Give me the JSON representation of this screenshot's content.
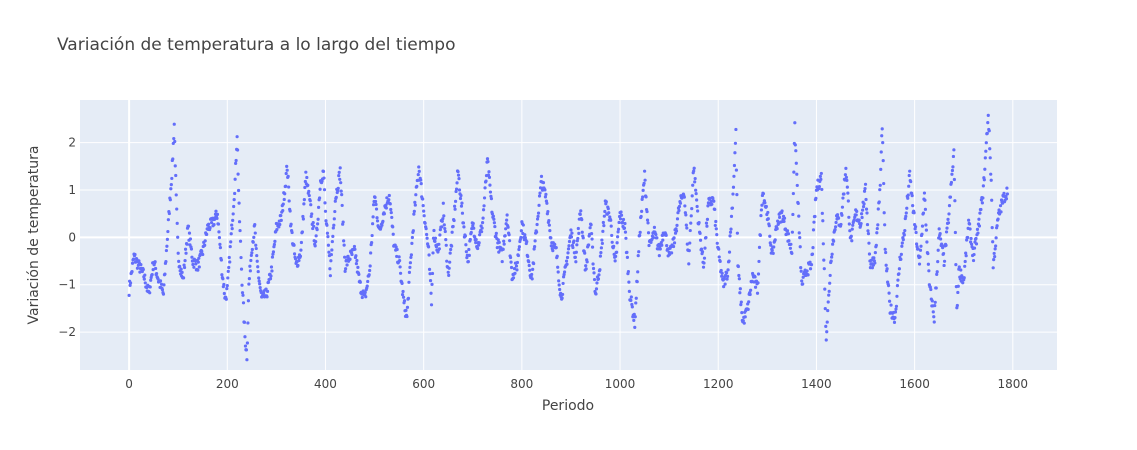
{
  "chart_data": {
    "type": "scatter",
    "title": "Variación de temperatura a lo largo del tiempo",
    "xlabel": "Periodo",
    "ylabel": "Variación de temperatura",
    "xlim": [
      -100,
      1890
    ],
    "ylim": [
      -2.8,
      2.9
    ],
    "x_ticks": [
      0,
      200,
      400,
      600,
      800,
      1000,
      1200,
      1400,
      1600,
      1800
    ],
    "y_ticks": [
      -2,
      -1,
      0,
      1,
      2
    ],
    "grid": true,
    "legend": "none",
    "marker_color": "#636efa",
    "plot_background": "#e5ecf6",
    "n_points": 1790,
    "series": [
      {
        "x": [
          0,
          10,
          20,
          30,
          40,
          50,
          60,
          70,
          80,
          88,
          92,
          96,
          100,
          110,
          120,
          130,
          140,
          150,
          160,
          170,
          180,
          190,
          196,
          200,
          210,
          216,
          220,
          224,
          230,
          236,
          240,
          244,
          250,
          256,
          260,
          270,
          280,
          290,
          300,
          310,
          318,
          322,
          330,
          340,
          350,
          360,
          370,
          380,
          390,
          396,
          400,
          410,
          420,
          430,
          440,
          450,
          460,
          470,
          480,
          490,
          500,
          510,
          520,
          530,
          540,
          550,
          560,
          566,
          570,
          580,
          590,
          600,
          610,
          616,
          620,
          630,
          640,
          650,
          660,
          670,
          680,
          690,
          700,
          710,
          720,
          730,
          740,
          750,
          760,
          770,
          780,
          790,
          800,
          810,
          820,
          830,
          840,
          850,
          860,
          870,
          880,
          890,
          900,
          910,
          920,
          930,
          940,
          950,
          960,
          970,
          980,
          990,
          1000,
          1010,
          1020,
          1030,
          1040,
          1050,
          1060,
          1070,
          1080,
          1090,
          1100,
          1110,
          1120,
          1130,
          1140,
          1150,
          1160,
          1170,
          1180,
          1190,
          1200,
          1210,
          1220,
          1230,
          1236,
          1240,
          1250,
          1260,
          1270,
          1280,
          1290,
          1300,
          1310,
          1320,
          1330,
          1340,
          1350,
          1356,
          1360,
          1370,
          1380,
          1390,
          1400,
          1410,
          1420,
          1430,
          1440,
          1450,
          1460,
          1470,
          1480,
          1490,
          1500,
          1510,
          1520,
          1530,
          1534,
          1540,
          1550,
          1560,
          1570,
          1580,
          1590,
          1600,
          1610,
          1620,
          1630,
          1640,
          1650,
          1660,
          1670,
          1680,
          1686,
          1690,
          1700,
          1710,
          1720,
          1730,
          1740,
          1750,
          1756,
          1760,
          1770,
          1780,
          1790
        ],
        "y": [
          -1.1,
          -0.4,
          -0.6,
          -0.8,
          -1.2,
          -0.5,
          -0.9,
          -1.2,
          0.3,
          1.5,
          2.4,
          0.8,
          -0.4,
          -0.9,
          0.2,
          -0.5,
          -0.6,
          -0.3,
          0.2,
          0.3,
          0.5,
          -0.8,
          -1.3,
          -1.1,
          0.3,
          1.2,
          2.2,
          0.6,
          -0.9,
          -2.1,
          -2.5,
          -1.0,
          -0.2,
          0.2,
          -0.5,
          -1.3,
          -1.2,
          -0.7,
          0.2,
          0.4,
          1.1,
          1.5,
          0.2,
          -0.6,
          -0.3,
          1.3,
          0.6,
          -0.2,
          1.2,
          1.4,
          0.5,
          -0.7,
          0.8,
          1.4,
          -0.6,
          -0.4,
          -0.3,
          -1.0,
          -1.3,
          -0.7,
          0.9,
          0.1,
          0.6,
          0.9,
          -0.2,
          -0.5,
          -1.4,
          -1.7,
          -1.0,
          0.4,
          1.5,
          0.6,
          -0.3,
          -1.4,
          0.1,
          -0.3,
          0.6,
          -0.8,
          0.2,
          1.4,
          0.4,
          -0.5,
          0.3,
          -0.2,
          0.3,
          1.6,
          0.5,
          -0.1,
          -0.4,
          0.5,
          -0.8,
          -0.6,
          0.3,
          -0.2,
          -0.9,
          0.2,
          1.2,
          0.8,
          -0.1,
          -0.3,
          -1.3,
          -0.6,
          0.1,
          -0.4,
          0.6,
          -0.7,
          0.3,
          -1.2,
          -0.5,
          0.7,
          0.4,
          -0.6,
          0.5,
          0.2,
          -1.2,
          -1.8,
          0.1,
          1.3,
          -0.2,
          0.1,
          -0.3,
          0.2,
          -0.4,
          -0.1,
          0.6,
          1.0,
          -0.5,
          1.5,
          0.3,
          -0.6,
          0.7,
          0.8,
          -0.3,
          -1.0,
          -0.7,
          0.9,
          2.2,
          -0.6,
          -1.8,
          -1.5,
          -0.8,
          -1.1,
          1.0,
          0.5,
          -0.4,
          0.3,
          0.5,
          0.1,
          -0.3,
          2.3,
          1.3,
          -1.0,
          -0.7,
          -0.6,
          1.0,
          1.3,
          -2.1,
          -0.4,
          0.4,
          0.3,
          1.5,
          -0.1,
          0.5,
          0.3,
          1.0,
          -0.6,
          -0.4,
          1.1,
          2.4,
          -0.3,
          -1.5,
          -1.7,
          -0.5,
          0.2,
          1.3,
          0.3,
          -0.6,
          0.9,
          -1.0,
          -1.7,
          0.1,
          -0.5,
          0.5,
          1.8,
          -1.6,
          -0.7,
          -0.9,
          0.3,
          -0.4,
          0.2,
          1.0,
          2.6,
          1.2,
          -0.6,
          0.4,
          0.8,
          1.0
        ]
      }
    ]
  }
}
